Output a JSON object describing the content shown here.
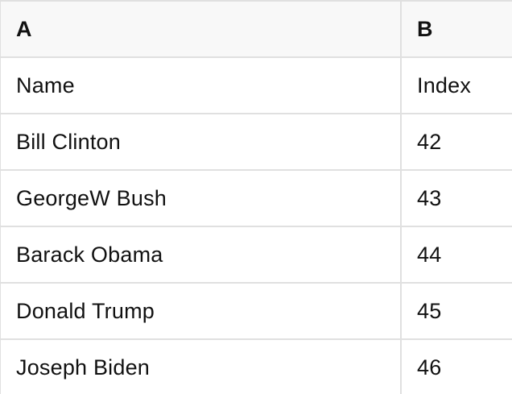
{
  "sheet": {
    "header": {
      "a": "A",
      "b": "B"
    },
    "rows": [
      {
        "a": "Name",
        "b": "Index"
      },
      {
        "a": "Bill Clinton",
        "b": "42"
      },
      {
        "a": "GeorgeW Bush",
        "b": "43"
      },
      {
        "a": "Barack Obama",
        "b": "44"
      },
      {
        "a": "Donald Trump",
        "b": "45"
      },
      {
        "a": "Joseph Biden",
        "b": "46"
      }
    ]
  },
  "colors": {
    "background": "#ffffff",
    "header_bg": "#f8f8f8",
    "border": "#e0e0e0",
    "text": "#111111"
  }
}
